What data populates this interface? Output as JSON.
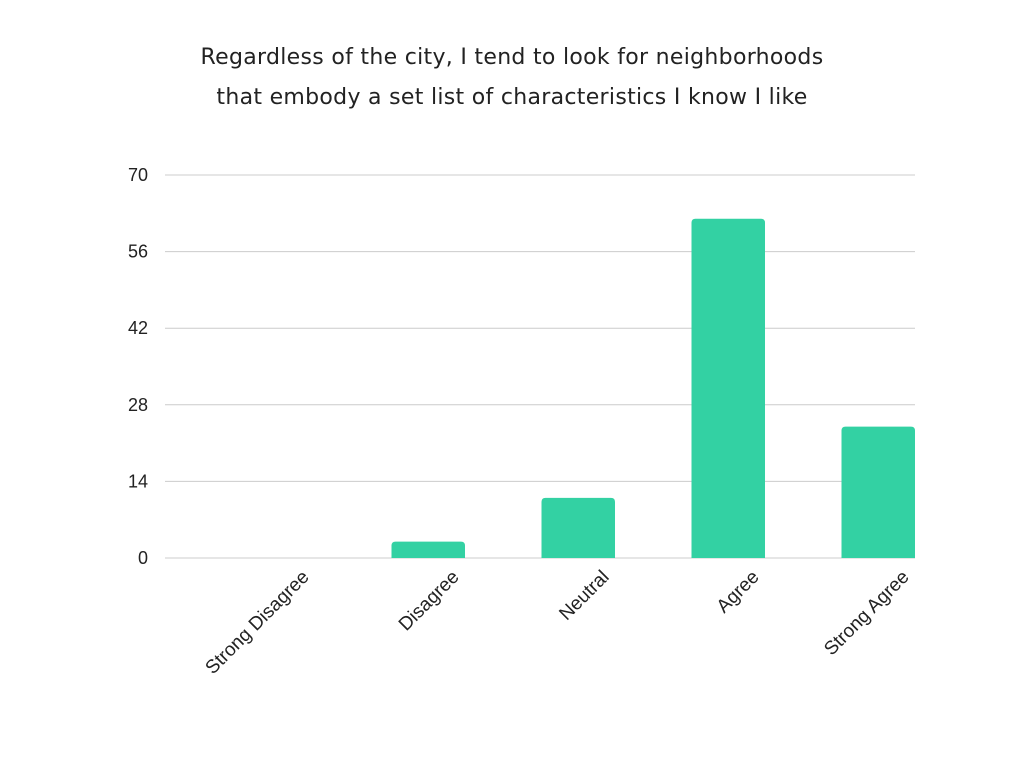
{
  "chart_data": {
    "type": "bar",
    "title_lines": [
      "Regardless of the city, I tend to look for neighborhoods",
      "that embody a set list of characteristics I know I like"
    ],
    "xlabel": "",
    "ylabel": "",
    "categories": [
      "Strong Disagree",
      "Disagree",
      "Neutral",
      "Agree",
      "Strong Agree"
    ],
    "values": [
      0,
      3,
      11,
      62,
      24
    ],
    "ylim": [
      0,
      70
    ],
    "yticks": [
      0,
      14,
      28,
      42,
      56,
      70
    ],
    "grid": true,
    "legend": "none",
    "bar_color": "#33d1a3",
    "grid_color": "#cccccc"
  }
}
